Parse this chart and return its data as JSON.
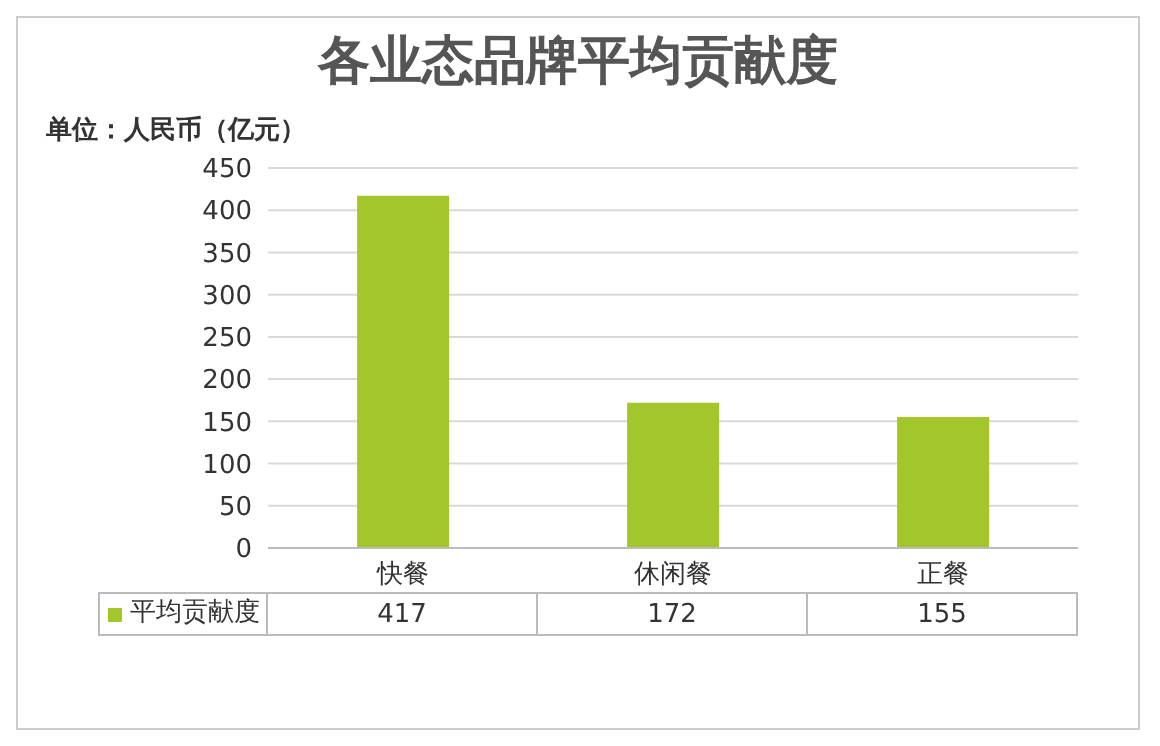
{
  "chart_data": {
    "type": "bar",
    "title": "各业态品牌平均贡献度",
    "ylabel": "单位：人民币（亿元）",
    "categories": [
      "快餐",
      "休闲餐",
      "正餐"
    ],
    "series": [
      {
        "name": "平均贡献度",
        "color": "#a3c62a",
        "values": [
          417,
          172,
          155
        ]
      }
    ],
    "ylim": [
      0,
      450
    ],
    "yticks": [
      0,
      50,
      100,
      150,
      200,
      250,
      300,
      350,
      400,
      450
    ],
    "grid": "y",
    "data_labels": true
  }
}
